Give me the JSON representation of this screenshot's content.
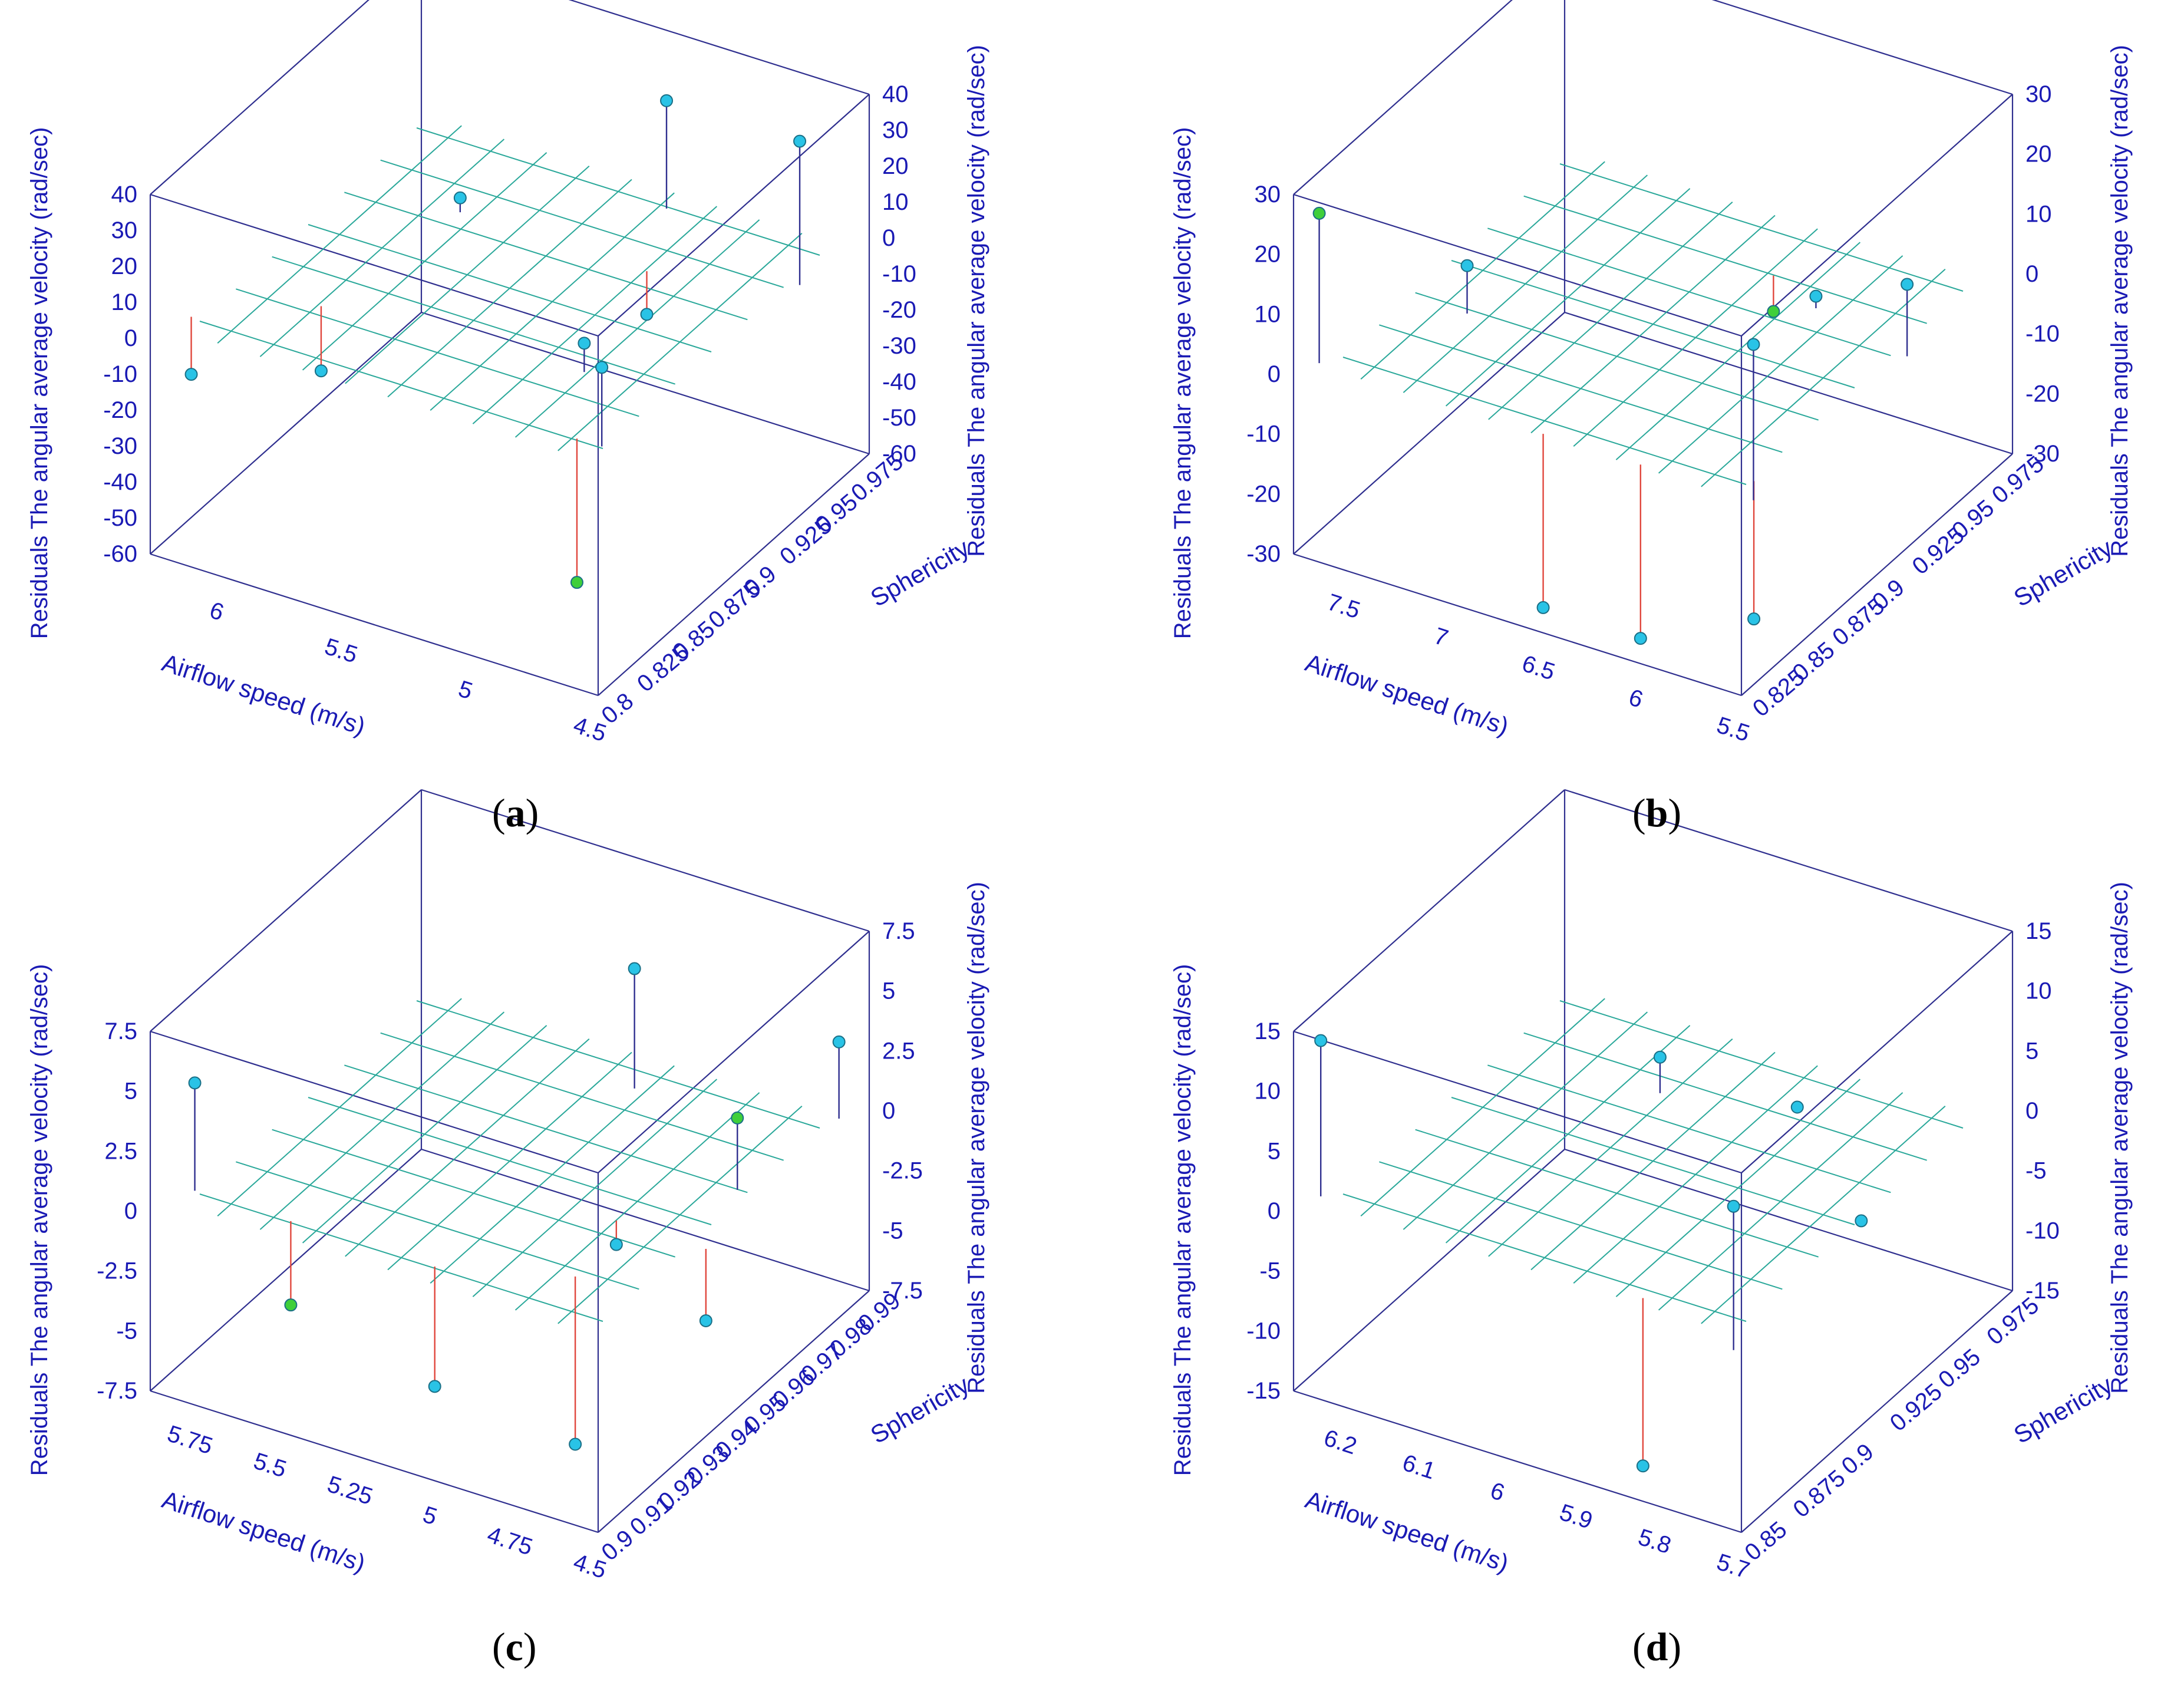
{
  "colors": {
    "axis": "#2f2f8f",
    "text": "#1a1ab4",
    "grid": "#2aa89a",
    "point_pos": "#29c3e6",
    "point_edge": "#1a6f86",
    "point_green": "#3fcf3a",
    "stem_pos": "#2f2f8f",
    "stem_neg": "#e0463c"
  },
  "chart_data": [
    {
      "type": "scatter3d",
      "panel": "(a)",
      "label": "a",
      "xlabel": "Airflow speed (m/s)",
      "ylabel": "Sphericity",
      "zlabel": "Residuals The angular average velocity  (rad/sec)",
      "xlim": [
        4.5,
        6.3
      ],
      "ylim": [
        0.8,
        0.99
      ],
      "zlim": [
        -60,
        40
      ],
      "x_ticks": [
        "6",
        "5.5",
        "5",
        "4.5"
      ],
      "y_ticks": [
        "0.8",
        "0.825",
        "0.85",
        "0.875",
        "0.9",
        "0.925",
        "0.95",
        "0.975"
      ],
      "z_ticks": [
        "40",
        "30",
        "20",
        "10",
        "0",
        "-10",
        "-20",
        "-30",
        "-40",
        "-50",
        "-60"
      ],
      "points": [
        {
          "x": 6.25,
          "y": 0.82,
          "z": -16,
          "color": "pos"
        },
        {
          "x": 5.9,
          "y": 0.85,
          "z": -18,
          "color": "pos"
        },
        {
          "x": 5.8,
          "y": 0.93,
          "z": 4,
          "color": "pos"
        },
        {
          "x": 5.05,
          "y": 0.93,
          "z": -12,
          "color": "pos"
        },
        {
          "x": 4.9,
          "y": 0.86,
          "z": 8,
          "color": "pos"
        },
        {
          "x": 5.2,
          "y": 0.97,
          "z": 30,
          "color": "pos"
        },
        {
          "x": 4.55,
          "y": 0.95,
          "z": 40,
          "color": "pos"
        },
        {
          "x": 4.6,
          "y": 0.82,
          "z": 22,
          "color": "pos"
        },
        {
          "x": 4.7,
          "y": 0.82,
          "z": -40,
          "color": "green"
        }
      ]
    },
    {
      "type": "scatter3d",
      "panel": "(b)",
      "label": "b",
      "xlabel": "Airflow speed (m/s)",
      "ylabel": "Sphericity",
      "zlabel": "Residuals The angular average velocity  (rad/sec)",
      "xlim": [
        5.5,
        7.8
      ],
      "ylim": [
        0.82,
        0.99
      ],
      "zlim": [
        -30,
        30
      ],
      "x_ticks": [
        "7.5",
        "7",
        "6.5",
        "6",
        "5.5"
      ],
      "y_ticks": [
        "0.825",
        "0.85",
        "0.875",
        "0.9",
        "0.925",
        "0.95",
        "0.975"
      ],
      "z_ticks": [
        "30",
        "20",
        "10",
        "0",
        "-10",
        "-20",
        "-30"
      ],
      "points": [
        {
          "x": 7.75,
          "y": 0.83,
          "z": 25,
          "color": "green"
        },
        {
          "x": 7.4,
          "y": 0.88,
          "z": 8,
          "color": "pos"
        },
        {
          "x": 6.1,
          "y": 0.94,
          "z": 2,
          "color": "pos"
        },
        {
          "x": 6.4,
          "y": 0.95,
          "z": -6,
          "color": "green"
        },
        {
          "x": 6.6,
          "y": 0.83,
          "z": -29,
          "color": "pos"
        },
        {
          "x": 6.1,
          "y": 0.83,
          "z": -29,
          "color": "pos"
        },
        {
          "x": 5.6,
          "y": 0.84,
          "z": -23,
          "color": "pos"
        },
        {
          "x": 5.55,
          "y": 0.93,
          "z": 12,
          "color": "pos"
        },
        {
          "x": 5.52,
          "y": 0.83,
          "z": 26,
          "color": "pos"
        }
      ]
    },
    {
      "type": "scatter3d",
      "panel": "(c)",
      "label": "c",
      "xlabel": "Airflow speed (m/s)",
      "ylabel": "Sphericity",
      "zlabel": "Residuals The angular average velocity  (rad/sec)",
      "xlim": [
        4.5,
        5.9
      ],
      "ylim": [
        0.9,
        0.995
      ],
      "zlim": [
        -7.5,
        7.5
      ],
      "x_ticks": [
        "5.75",
        "5.5",
        "5.25",
        "5",
        "4.75",
        "4.5"
      ],
      "y_ticks": [
        "0.9",
        "0.91",
        "0.92",
        "0.93",
        "0.94",
        "0.95",
        "0.96",
        "0.97",
        "0.98",
        "0.99"
      ],
      "z_ticks": [
        "7.5",
        "5",
        "2.5",
        "0",
        "-2.5",
        "-5",
        "-7.5"
      ],
      "points": [
        {
          "x": 5.85,
          "y": 0.91,
          "z": 4.5,
          "color": "pos"
        },
        {
          "x": 5.1,
          "y": 0.98,
          "z": 5,
          "color": "pos"
        },
        {
          "x": 5.55,
          "y": 0.91,
          "z": -3.5,
          "color": "green"
        },
        {
          "x": 5.1,
          "y": 0.91,
          "z": -5,
          "color": "pos"
        },
        {
          "x": 4.8,
          "y": 0.94,
          "z": -1,
          "color": "pos"
        },
        {
          "x": 4.75,
          "y": 0.92,
          "z": -7,
          "color": "pos"
        },
        {
          "x": 4.6,
          "y": 0.96,
          "z": 3,
          "color": "green"
        },
        {
          "x": 4.55,
          "y": 0.99,
          "z": 3.2,
          "color": "pos"
        },
        {
          "x": 4.52,
          "y": 0.94,
          "z": -3,
          "color": "pos"
        }
      ]
    },
    {
      "type": "scatter3d",
      "panel": "(d)",
      "label": "d",
      "xlabel": "Airflow speed (m/s)",
      "ylabel": "Sphericity",
      "zlabel": "Residuals The angular average velocity  (rad/sec)",
      "xlim": [
        5.7,
        6.27
      ],
      "ylim": [
        0.85,
        0.99
      ],
      "zlim": [
        -15,
        15
      ],
      "x_ticks": [
        "6.2",
        "6.1",
        "6",
        "5.9",
        "5.8",
        "5.7"
      ],
      "y_ticks": [
        "0.85",
        "0.875",
        "0.9",
        "0.925",
        "0.95",
        "0.975"
      ],
      "z_ticks": [
        "15",
        "10",
        "5",
        "0",
        "-5",
        "-10",
        "-15"
      ],
      "points": [
        {
          "x": 6.26,
          "y": 0.86,
          "z": 13,
          "color": "pos"
        },
        {
          "x": 6.05,
          "y": 0.95,
          "z": 3,
          "color": "pos"
        },
        {
          "x": 5.9,
          "y": 0.96,
          "z": 0.5,
          "color": "pos"
        },
        {
          "x": 5.85,
          "y": 0.86,
          "z": -14,
          "color": "pos"
        },
        {
          "x": 5.72,
          "y": 0.92,
          "z": 0.5,
          "color": "pos"
        },
        {
          "x": 5.71,
          "y": 0.85,
          "z": 12,
          "color": "pos"
        }
      ]
    }
  ]
}
